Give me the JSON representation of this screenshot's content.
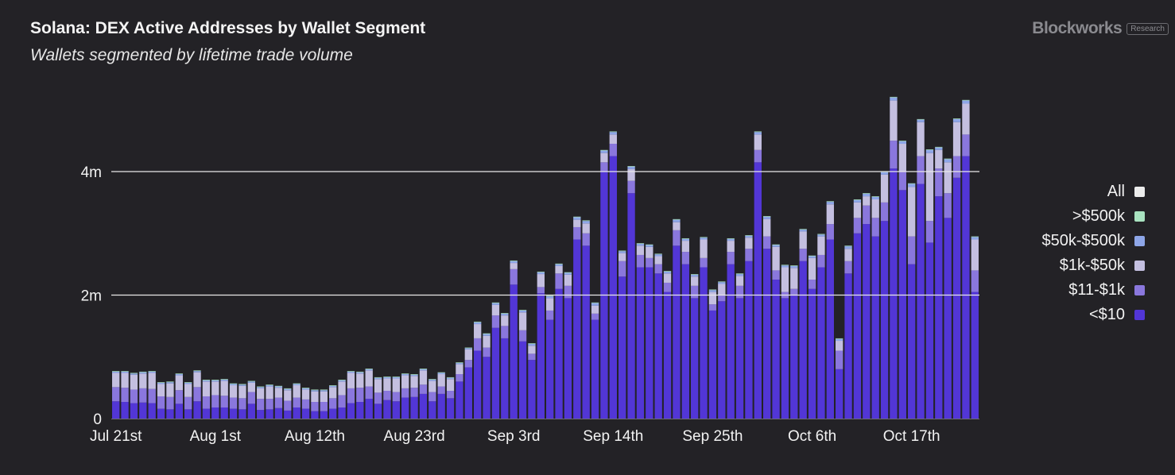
{
  "header": {
    "title": "Solana: DEX Active Addresses by Wallet Segment",
    "subtitle": "Wallets segmented by lifetime trade volume"
  },
  "brand": {
    "name": "Blockworks",
    "tag": "Research"
  },
  "legend": [
    {
      "label": "All",
      "color": "#ececec"
    },
    {
      "label": ">$500k",
      "color": "#a9e3c0"
    },
    {
      "label": "$50k-$500k",
      "color": "#8ea6e8"
    },
    {
      "label": "$1k-$50k",
      "color": "#c4bfe0"
    },
    {
      "label": "$11-$1k",
      "color": "#8a77dd"
    },
    {
      "label": "<$10",
      "color": "#5236d6"
    }
  ],
  "chart_data": {
    "type": "bar",
    "stacked": true,
    "x_start": "Jul 21st",
    "x_tick_labels": [
      "Jul 21st",
      "Aug 1st",
      "Aug 12th",
      "Aug 23rd",
      "Sep 3rd",
      "Sep 14th",
      "Sep 25th",
      "Oct 6th",
      "Oct 17th"
    ],
    "x_tick_every": 11,
    "y_ticks": [
      {
        "value": 0,
        "label": "0"
      },
      {
        "value": 2000000,
        "label": "2m"
      },
      {
        "value": 4000000,
        "label": "4m"
      }
    ],
    "ylim": [
      0,
      5500000
    ],
    "grid": "horizontal",
    "legend_position": "right",
    "series": [
      {
        "name": "<$10",
        "color": "#5236d6",
        "values": [
          0.28,
          0.27,
          0.25,
          0.26,
          0.25,
          0.16,
          0.15,
          0.24,
          0.15,
          0.28,
          0.16,
          0.18,
          0.18,
          0.16,
          0.15,
          0.24,
          0.14,
          0.15,
          0.17,
          0.13,
          0.18,
          0.16,
          0.12,
          0.12,
          0.16,
          0.18,
          0.25,
          0.27,
          0.32,
          0.24,
          0.3,
          0.28,
          0.34,
          0.35,
          0.4,
          0.28,
          0.4,
          0.33,
          0.6,
          0.83,
          1.1,
          1.0,
          1.47,
          1.3,
          2.17,
          1.25,
          0.95,
          2.03,
          1.6,
          2.1,
          1.95,
          2.9,
          2.8,
          1.6,
          4.0,
          4.25,
          2.3,
          3.65,
          2.45,
          2.45,
          2.35,
          2.05,
          2.8,
          2.5,
          1.95,
          2.45,
          1.75,
          1.9,
          2.5,
          1.95,
          2.55,
          4.15,
          2.75,
          2.25,
          1.95,
          2.0,
          2.55,
          2.1,
          2.45,
          2.9,
          0.8,
          2.35,
          3.0,
          3.15,
          2.95,
          3.2,
          4.05,
          3.7,
          2.5,
          3.8,
          2.85,
          3.6,
          3.25,
          3.9,
          4.25,
          2.05
        ]
      },
      {
        "name": "$11-$1k",
        "color": "#8a77dd",
        "values": [
          0.23,
          0.23,
          0.22,
          0.23,
          0.23,
          0.2,
          0.2,
          0.22,
          0.2,
          0.23,
          0.2,
          0.2,
          0.19,
          0.18,
          0.18,
          0.19,
          0.18,
          0.17,
          0.17,
          0.16,
          0.16,
          0.15,
          0.15,
          0.15,
          0.17,
          0.2,
          0.24,
          0.23,
          0.2,
          0.18,
          0.15,
          0.15,
          0.15,
          0.15,
          0.15,
          0.15,
          0.12,
          0.12,
          0.12,
          0.12,
          0.2,
          0.15,
          0.2,
          0.2,
          0.25,
          0.18,
          0.1,
          0.1,
          0.15,
          0.25,
          0.2,
          0.2,
          0.2,
          0.1,
          0.15,
          0.2,
          0.25,
          0.2,
          0.2,
          0.15,
          0.15,
          0.15,
          0.25,
          0.2,
          0.2,
          0.15,
          0.1,
          0.1,
          0.2,
          0.2,
          0.2,
          0.2,
          0.2,
          0.15,
          0.1,
          0.1,
          0.2,
          0.15,
          0.2,
          0.25,
          0.3,
          0.2,
          0.25,
          0.3,
          0.3,
          0.3,
          0.45,
          0.3,
          0.45,
          0.45,
          0.35,
          0.45,
          0.4,
          0.35,
          0.35,
          0.35
        ]
      },
      {
        "name": "$1k-$50k",
        "color": "#c4bfe0",
        "values": [
          0.23,
          0.24,
          0.24,
          0.24,
          0.26,
          0.2,
          0.22,
          0.24,
          0.21,
          0.24,
          0.24,
          0.22,
          0.24,
          0.2,
          0.2,
          0.15,
          0.17,
          0.2,
          0.16,
          0.17,
          0.2,
          0.16,
          0.17,
          0.17,
          0.18,
          0.22,
          0.25,
          0.23,
          0.26,
          0.22,
          0.2,
          0.22,
          0.21,
          0.19,
          0.23,
          0.18,
          0.2,
          0.19,
          0.16,
          0.17,
          0.23,
          0.19,
          0.17,
          0.17,
          0.1,
          0.29,
          0.13,
          0.21,
          0.2,
          0.12,
          0.18,
          0.12,
          0.16,
          0.13,
          0.15,
          0.15,
          0.13,
          0.19,
          0.15,
          0.18,
          0.13,
          0.15,
          0.13,
          0.18,
          0.15,
          0.3,
          0.2,
          0.18,
          0.18,
          0.16,
          0.18,
          0.25,
          0.28,
          0.38,
          0.4,
          0.34,
          0.28,
          0.35,
          0.3,
          0.32,
          0.16,
          0.2,
          0.25,
          0.15,
          0.3,
          0.45,
          0.65,
          0.45,
          0.8,
          0.55,
          1.1,
          0.3,
          0.5,
          0.55,
          0.5,
          0.5
        ]
      },
      {
        "name": "$50k-$500k",
        "color": "#8ea6e8",
        "values": [
          0.02,
          0.02,
          0.02,
          0.02,
          0.02,
          0.02,
          0.02,
          0.02,
          0.02,
          0.02,
          0.02,
          0.02,
          0.02,
          0.02,
          0.02,
          0.02,
          0.02,
          0.02,
          0.02,
          0.02,
          0.02,
          0.02,
          0.02,
          0.02,
          0.02,
          0.02,
          0.02,
          0.02,
          0.02,
          0.02,
          0.02,
          0.02,
          0.02,
          0.02,
          0.02,
          0.02,
          0.02,
          0.02,
          0.02,
          0.02,
          0.03,
          0.03,
          0.03,
          0.03,
          0.03,
          0.03,
          0.03,
          0.03,
          0.03,
          0.03,
          0.03,
          0.04,
          0.04,
          0.04,
          0.04,
          0.04,
          0.03,
          0.04,
          0.03,
          0.03,
          0.03,
          0.03,
          0.04,
          0.03,
          0.03,
          0.03,
          0.03,
          0.03,
          0.03,
          0.03,
          0.03,
          0.04,
          0.04,
          0.03,
          0.03,
          0.03,
          0.03,
          0.03,
          0.03,
          0.04,
          0.03,
          0.04,
          0.04,
          0.04,
          0.04,
          0.04,
          0.05,
          0.04,
          0.05,
          0.04,
          0.05,
          0.04,
          0.05,
          0.05,
          0.05,
          0.04
        ]
      },
      {
        "name": ">$500k",
        "color": "#a9e3c0",
        "values": [
          0.01,
          0.01,
          0.01,
          0.01,
          0.01,
          0.01,
          0.01,
          0.01,
          0.01,
          0.01,
          0.01,
          0.01,
          0.01,
          0.01,
          0.01,
          0.01,
          0.01,
          0.01,
          0.01,
          0.01,
          0.01,
          0.01,
          0.01,
          0.01,
          0.01,
          0.01,
          0.01,
          0.01,
          0.01,
          0.01,
          0.01,
          0.01,
          0.01,
          0.01,
          0.01,
          0.01,
          0.01,
          0.01,
          0.01,
          0.01,
          0.01,
          0.01,
          0.01,
          0.01,
          0.01,
          0.01,
          0.01,
          0.01,
          0.01,
          0.01,
          0.01,
          0.01,
          0.01,
          0.01,
          0.01,
          0.01,
          0.01,
          0.01,
          0.01,
          0.01,
          0.01,
          0.01,
          0.01,
          0.01,
          0.01,
          0.01,
          0.01,
          0.01,
          0.01,
          0.01,
          0.01,
          0.01,
          0.01,
          0.01,
          0.01,
          0.01,
          0.01,
          0.01,
          0.01,
          0.01,
          0.01,
          0.01,
          0.01,
          0.01,
          0.01,
          0.01,
          0.01,
          0.01,
          0.01,
          0.01,
          0.01,
          0.01,
          0.01,
          0.01,
          0.01,
          0.01
        ]
      }
    ],
    "value_unit": "millions of addresses"
  }
}
